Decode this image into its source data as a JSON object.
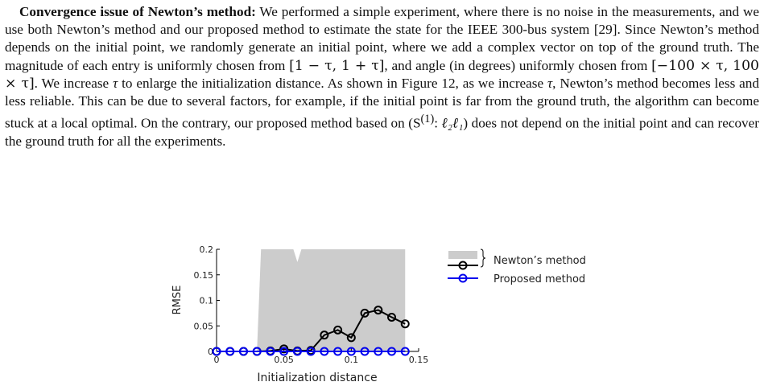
{
  "paragraph": {
    "heading": "Convergence issue of Newton’s method:",
    "s1": " We performed a simple experiment, where there is no noise in the measurements, and we use both Newton’s method and our proposed method to estimate the state for the IEEE 300-bus system [29]. Since Newton’s method depends on the initial point, we randomly generate an initial point, where we add a complex vector on top of the ground truth. The magnitude of each entry is uniformly chosen from ",
    "interval1": "[1 − τ, 1 + τ]",
    "s2": ", and angle (in degrees) uniformly chosen from ",
    "interval2": "[−100 × τ, 100 × τ]",
    "s3": ". We increase ",
    "tau1": "τ",
    "s4": " to enlarge the initialization distance.  As shown in Figure 12, as we increase ",
    "tau2": "τ",
    "s5": ", Newton’s method becomes less and less reliable. This can be due to several factors, for example, if the initial point is far from the ground truth, the algorithm can become stuck at a local optimal. On the contrary, our proposed method based on (S",
    "sup": "(1)",
    "s6": ": ",
    "norm": "ℓ₂ℓ₁",
    "s7": ") does not depend on the initial point and can recover the ground truth for all the experiments."
  },
  "chart_data": {
    "type": "line",
    "xlabel": "Initialization distance",
    "ylabel": "RMSE",
    "xlim": [
      0,
      0.15
    ],
    "ylim": [
      0,
      0.2
    ],
    "x_ticks": [
      "0",
      "0.05",
      "0.1",
      "0.15"
    ],
    "y_ticks": [
      "0",
      "0.05",
      "0.1",
      "0.15",
      "0.2"
    ],
    "grid": false,
    "legend_position": "right of plot",
    "x": [
      0,
      0.01,
      0.02,
      0.03,
      0.04,
      0.05,
      0.06,
      0.07,
      0.08,
      0.09,
      0.1,
      0.11,
      0.12,
      0.13,
      0.14
    ],
    "band": {
      "x": [
        0.03,
        0.033,
        0.057,
        0.06,
        0.063,
        0.07,
        0.14
      ],
      "upper": [
        0,
        0.2,
        0.2,
        0.175,
        0.2,
        0.2,
        0.2
      ]
    },
    "series": [
      {
        "name": "Newton’s method",
        "color": "#000000",
        "values": [
          0,
          0,
          0,
          0,
          0.001,
          0.005,
          0.001,
          0.002,
          0.032,
          0.042,
          0.027,
          0.075,
          0.081,
          0.067,
          0.054
        ]
      },
      {
        "name": "Proposed method",
        "color": "#0000ee",
        "values": [
          0,
          0,
          0,
          0,
          0,
          0,
          0,
          0,
          0,
          0,
          0,
          0,
          0,
          0,
          0
        ]
      }
    ],
    "band_color": "#cccccc"
  }
}
